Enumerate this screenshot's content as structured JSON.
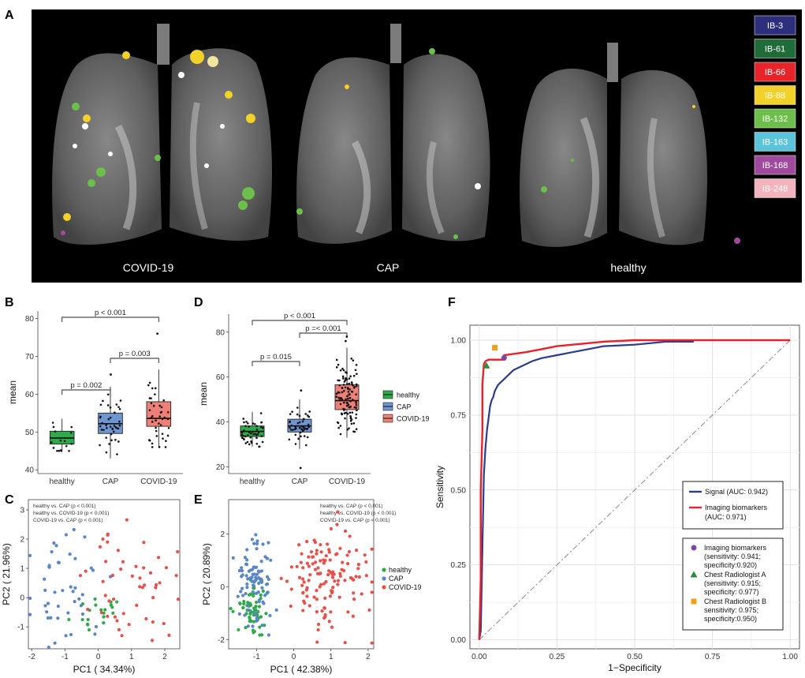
{
  "panel_labels": {
    "A": "A",
    "B": "B",
    "C": "C",
    "D": "D",
    "E": "E",
    "F": "F"
  },
  "panelA": {
    "captions": [
      "COVID-19",
      "CAP",
      "healthy"
    ],
    "legend": [
      {
        "label": "IB-3",
        "color": "#2e2f7c"
      },
      {
        "label": "IB-61",
        "color": "#1f6b3a"
      },
      {
        "label": "IB-66",
        "color": "#e8232a"
      },
      {
        "label": "IB-88",
        "color": "#f2d228"
      },
      {
        "label": "IB-132",
        "color": "#6cbf4a"
      },
      {
        "label": "IB-163",
        "color": "#5cc4da"
      },
      {
        "label": "IB-168",
        "color": "#a04a9e"
      },
      {
        "label": "IB-248",
        "color": "#f3b4bd"
      }
    ]
  },
  "chart_data": [
    {
      "id": "B",
      "type": "box",
      "categories": [
        "healthy",
        "CAP",
        "COVID-19"
      ],
      "colors": [
        "#2eaa4a",
        "#6f95d2",
        "#ef8078"
      ],
      "ylabel": "mean",
      "xlabel": "",
      "ylim": [
        39,
        82
      ],
      "yticks": [
        40,
        50,
        60,
        70,
        80
      ],
      "boxes": [
        {
          "q1": 46.8,
          "median": 48.4,
          "q3": 50.2,
          "whisker_low": 45.0,
          "whisker_high": 53.5,
          "outliers": []
        },
        {
          "q1": 49.6,
          "median": 52.2,
          "q3": 55.0,
          "whisker_low": 43.0,
          "whisker_high": 62.0,
          "outliers": [
            65.2
          ]
        },
        {
          "q1": 51.5,
          "median": 53.6,
          "q3": 58.0,
          "whisker_low": 46.0,
          "whisker_high": 66.5,
          "outliers": [
            76.0
          ]
        }
      ],
      "comparisons": [
        {
          "a": "healthy",
          "b": "COVID-19",
          "label": "p < 0.001"
        },
        {
          "a": "CAP",
          "b": "COVID-19",
          "label": "p = 0.003"
        },
        {
          "a": "healthy",
          "b": "CAP",
          "label": "p = 0.002"
        }
      ]
    },
    {
      "id": "D",
      "type": "box",
      "categories": [
        "healthy",
        "CAP",
        "COVID-19"
      ],
      "colors": [
        "#2eaa4a",
        "#6f95d2",
        "#ef8078"
      ],
      "ylabel": "mean",
      "xlabel": "",
      "ylim": [
        17,
        88
      ],
      "yticks": [
        20,
        40,
        60,
        80
      ],
      "legend": [
        "healthy",
        "CAP",
        "COVID-19"
      ],
      "boxes": [
        {
          "q1": 33.5,
          "median": 35.8,
          "q3": 38.2,
          "whisker_low": 29.0,
          "whisker_high": 44.5,
          "outliers": []
        },
        {
          "q1": 35.5,
          "median": 38.2,
          "q3": 41.2,
          "whisker_low": 28.0,
          "whisker_high": 50.0,
          "outliers": [
            19.5,
            54.0
          ]
        },
        {
          "q1": 45.5,
          "median": 49.5,
          "q3": 56.5,
          "whisker_low": 33.0,
          "whisker_high": 73.0,
          "outliers": [
            76.0,
            78.0
          ]
        }
      ],
      "comparisons": [
        {
          "a": "healthy",
          "b": "COVID-19",
          "label": "p < 0.001"
        },
        {
          "a": "CAP",
          "b": "COVID-19",
          "label": "p =< 0.001"
        },
        {
          "a": "healthy",
          "b": "CAP",
          "label": "p = 0.015"
        }
      ]
    },
    {
      "id": "C",
      "type": "scatter",
      "xlabel": "PC1 ( 34.34%)",
      "ylabel": "PC2 ( 21.96%)",
      "xlim": [
        -2.1,
        2.45
      ],
      "ylim": [
        -1.75,
        3.35
      ],
      "xticks": [
        -2,
        -1,
        0,
        1,
        2
      ],
      "yticks": [
        -1,
        0,
        1,
        2,
        3
      ],
      "annotations": [
        "healthy vs. CAP (p < 0.001)",
        "healthy vs. COVID-19 (p < 0.001)",
        "COVID-19 vs. CAP (p < 0.001)"
      ],
      "series": [
        {
          "name": "healthy",
          "color": "#2eaa4a",
          "n": 20,
          "center": [
            0.0,
            -0.5
          ],
          "spread": [
            0.35,
            0.35
          ],
          "seed": 11
        },
        {
          "name": "CAP",
          "color": "#5b86c6",
          "n": 45,
          "center": [
            -0.9,
            0.2
          ],
          "spread": [
            0.55,
            0.85
          ],
          "seed": 23
        },
        {
          "name": "COVID-19",
          "color": "#e8504a",
          "n": 50,
          "center": [
            1.0,
            0.35
          ],
          "spread": [
            0.65,
            0.95
          ],
          "seed": 37
        }
      ]
    },
    {
      "id": "E",
      "type": "scatter",
      "xlabel": "PC1 ( 42.38%)",
      "ylabel": "PC2 ( 20.89%)",
      "xlim": [
        -1.75,
        2.15
      ],
      "ylim": [
        -2.35,
        3.3
      ],
      "xticks": [
        -1,
        0,
        1,
        2
      ],
      "yticks": [
        -2,
        0,
        2
      ],
      "annotations": [
        "healthy vs. CAP (p < 0.001)",
        "healthy vs. COVID-19 (p < 0.001)",
        "COVID-19 vs. CAP (p < 0.001)"
      ],
      "legend": [
        "healthy",
        "CAP",
        "COVID-19"
      ],
      "series": [
        {
          "name": "healthy",
          "color": "#2eaa4a",
          "n": 60,
          "center": [
            -1.05,
            -0.8
          ],
          "spread": [
            0.2,
            0.45
          ],
          "seed": 5
        },
        {
          "name": "CAP",
          "color": "#5b86c6",
          "n": 90,
          "center": [
            -1.05,
            0.2
          ],
          "spread": [
            0.25,
            0.85
          ],
          "seed": 13
        },
        {
          "name": "COVID-19",
          "color": "#e8504a",
          "n": 130,
          "center": [
            0.8,
            0.35
          ],
          "spread": [
            0.55,
            0.95
          ],
          "seed": 29
        }
      ]
    },
    {
      "id": "F",
      "type": "line",
      "xlabel": "1−Specificity",
      "ylabel": "Sensitivity",
      "xlim": [
        -0.03,
        1.03
      ],
      "ylim": [
        -0.03,
        1.05
      ],
      "xticks": [
        "0.00",
        "0.25",
        "0.50",
        "0.75",
        "1.00"
      ],
      "yticks": [
        "0.00",
        "0.25",
        "0.50",
        "0.75",
        "1.00"
      ],
      "series": [
        {
          "name": "Signal (AUC: 0.942)",
          "color": "#2b3b8f",
          "x": [
            0,
            0.005,
            0.01,
            0.015,
            0.02,
            0.025,
            0.03,
            0.035,
            0.04,
            0.045,
            0.05,
            0.055,
            0.06,
            0.07,
            0.08,
            0.09,
            0.1,
            0.11,
            0.13,
            0.15,
            0.17,
            0.2,
            0.25,
            0.3,
            0.35,
            0.4,
            0.5,
            0.55,
            0.6,
            0.69
          ],
          "y": [
            0,
            0.03,
            0.3,
            0.55,
            0.64,
            0.7,
            0.74,
            0.78,
            0.8,
            0.81,
            0.83,
            0.84,
            0.85,
            0.86,
            0.87,
            0.88,
            0.89,
            0.9,
            0.91,
            0.92,
            0.93,
            0.94,
            0.95,
            0.96,
            0.97,
            0.98,
            0.985,
            0.99,
            0.995,
            0.995
          ]
        },
        {
          "name": "Imaging biomarkers (AUC: 0.971)",
          "color": "#e8212a",
          "x": [
            0,
            0.005,
            0.005,
            0.01,
            0.01,
            0.015,
            0.02,
            0.03,
            0.08,
            0.08,
            0.15,
            0.2,
            0.25,
            0.3,
            0.35,
            0.4,
            0.5,
            0.6,
            0.7,
            1.0
          ],
          "y": [
            0,
            0.2,
            0.5,
            0.7,
            0.85,
            0.92,
            0.93,
            0.935,
            0.935,
            0.95,
            0.96,
            0.97,
            0.98,
            0.985,
            0.99,
            0.995,
            1.0,
            1.0,
            1.0,
            1.0
          ]
        }
      ],
      "diagonal": true,
      "legend1": {
        "signal": "Signal (AUC: 0.942)",
        "imaging_l1": "Imaging biomarkers",
        "imaging_l2": "(AUC: 0.971)"
      },
      "points": [
        {
          "name": "Imaging biomarkers",
          "x": 0.08,
          "y": 0.941,
          "color": "#7b4aa0",
          "shape": "circle",
          "lines": [
            "Imaging biomarkers",
            "(sensitivity: 0.941;",
            "specificity:0.920)"
          ]
        },
        {
          "name": "Chest Radiologist A",
          "x": 0.023,
          "y": 0.915,
          "color": "#2e8b3a",
          "shape": "triangle",
          "lines": [
            "Chest Radiologist A",
            "(sensitivity: 0.915;",
            "specificity: 0.977)"
          ]
        },
        {
          "name": "Chest Radiologist B",
          "x": 0.05,
          "y": 0.975,
          "color": "#f0a020",
          "shape": "square",
          "lines": [
            "Chest Radiologist B",
            "sensitivity: 0.975;",
            "specificity:0.950)"
          ]
        }
      ]
    }
  ]
}
